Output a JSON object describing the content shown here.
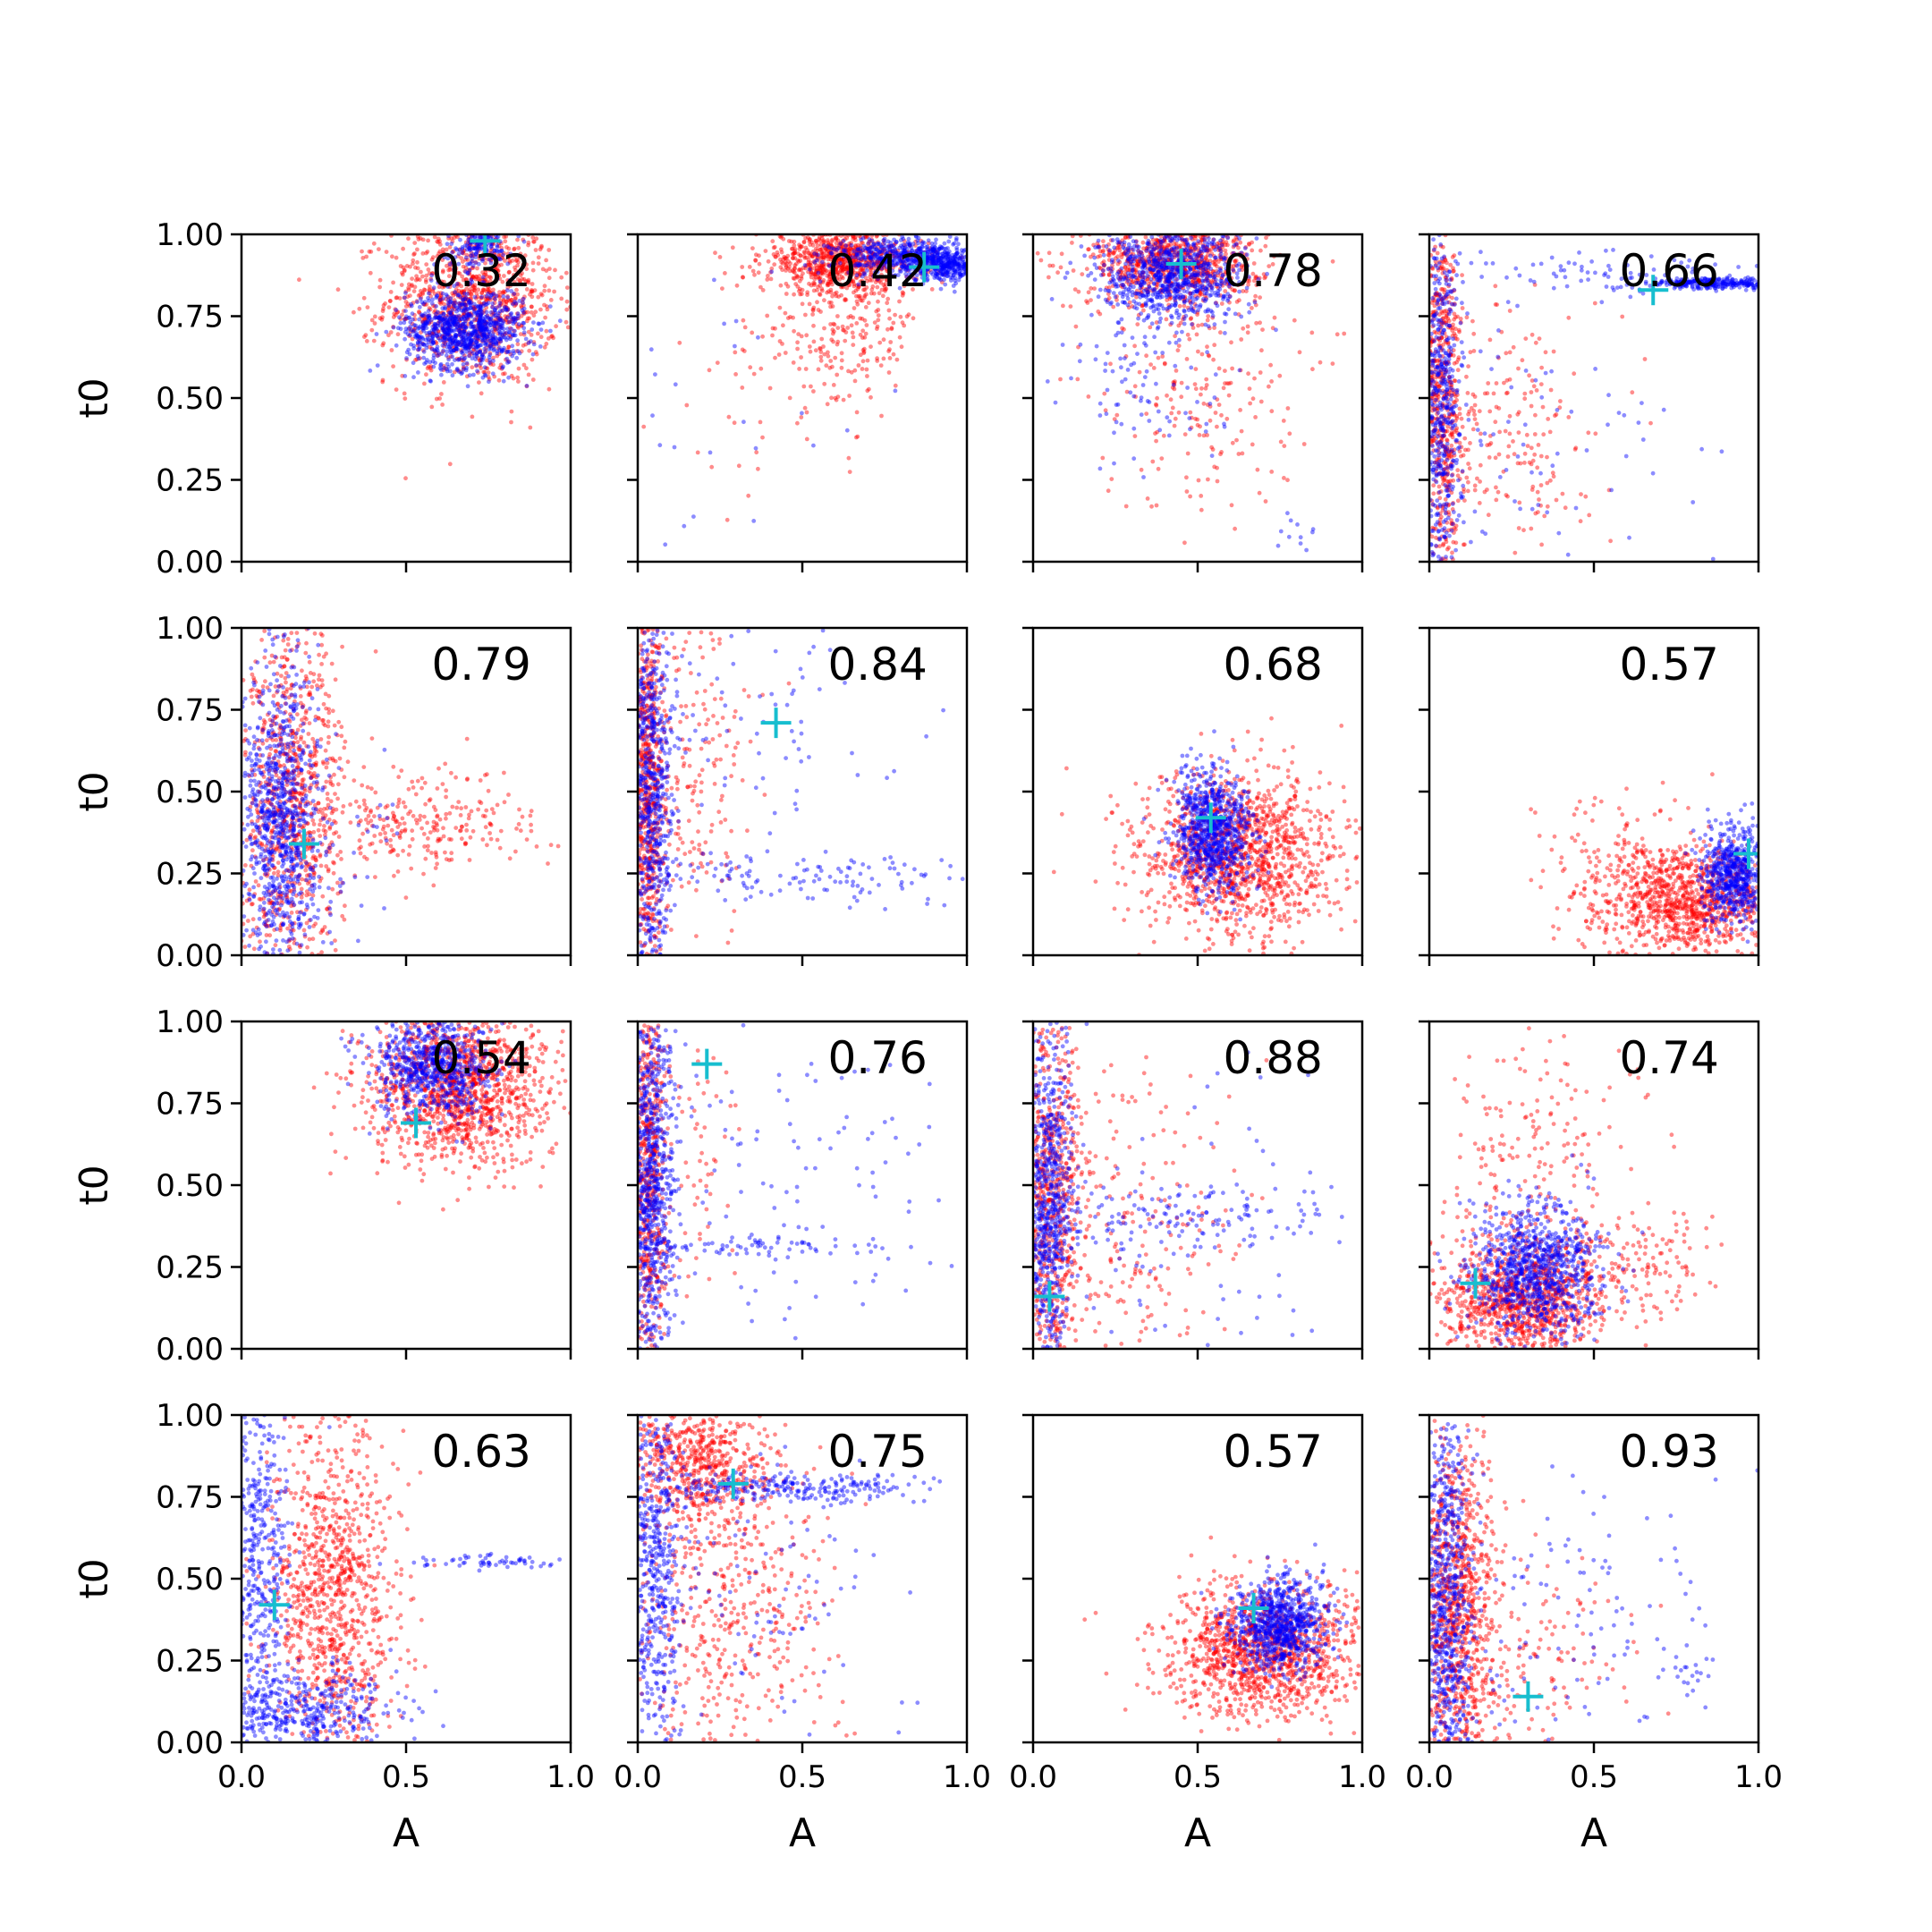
{
  "chart_data": {
    "type": "scatter",
    "layout": "4x4 grid",
    "xlabel": "A",
    "ylabel": "t0",
    "xlim": [
      0,
      1
    ],
    "ylim": [
      0,
      1
    ],
    "xticks": [
      "0.0",
      "0.5",
      "1.0"
    ],
    "yticks": [
      "0.00",
      "0.25",
      "0.50",
      "0.75",
      "1.00"
    ],
    "grid": false,
    "series_colors": {
      "red": "#ff0000",
      "blue": "#0000ff",
      "marker": "#17becf"
    },
    "panels": [
      {
        "label": "0.32",
        "marker": [
          0.74,
          0.98
        ],
        "red": [
          {
            "cx": 0.7,
            "cy": 0.8,
            "sx": 0.13,
            "sy": 0.13,
            "n": 1100
          }
        ],
        "blue": [
          {
            "cx": 0.68,
            "cy": 0.71,
            "sx": 0.09,
            "sy": 0.06,
            "n": 900
          },
          {
            "cx": 0.72,
            "cy": 0.96,
            "sx": 0.05,
            "sy": 0.03,
            "n": 150
          }
        ]
      },
      {
        "label": "0.42",
        "marker": [
          0.87,
          0.9
        ],
        "red": [
          {
            "cx": 0.62,
            "cy": 0.92,
            "sx": 0.12,
            "sy": 0.05,
            "n": 800
          },
          {
            "cx": 0.62,
            "cy": 0.72,
            "sx": 0.12,
            "sy": 0.13,
            "n": 260
          },
          {
            "cx": 0.35,
            "cy": 0.55,
            "sx": 0.15,
            "sy": 0.2,
            "n": 40
          }
        ],
        "blue": [
          {
            "cx": 0.84,
            "cy": 0.93,
            "sx": 0.12,
            "sy": 0.03,
            "n": 600
          },
          {
            "cx": 0.93,
            "cy": 0.9,
            "sx": 0.05,
            "sy": 0.02,
            "n": 250
          },
          {
            "cx": 0.3,
            "cy": 0.4,
            "sx": 0.2,
            "sy": 0.25,
            "n": 25
          }
        ]
      },
      {
        "label": "0.78",
        "marker": [
          0.45,
          0.91
        ],
        "red": [
          {
            "cx": 0.43,
            "cy": 0.92,
            "sx": 0.13,
            "sy": 0.07,
            "n": 900
          },
          {
            "cx": 0.5,
            "cy": 0.55,
            "sx": 0.15,
            "sy": 0.2,
            "n": 220
          }
        ],
        "blue": [
          {
            "cx": 0.42,
            "cy": 0.88,
            "sx": 0.11,
            "sy": 0.07,
            "n": 800
          },
          {
            "cx": 0.35,
            "cy": 0.55,
            "sx": 0.15,
            "sy": 0.15,
            "n": 100
          },
          {
            "cx": 0.8,
            "cy": 0.1,
            "sx": 0.04,
            "sy": 0.05,
            "n": 12
          }
        ]
      },
      {
        "label": "0.66",
        "marker": [
          0.68,
          0.83
        ],
        "red": [
          {
            "cx": 0.04,
            "cy": 0.5,
            "sx": 0.03,
            "sy": 0.28,
            "n": 600
          },
          {
            "cx": 0.22,
            "cy": 0.4,
            "sx": 0.14,
            "sy": 0.2,
            "n": 220
          }
        ],
        "blue": [
          {
            "cx": 0.04,
            "cy": 0.5,
            "sx": 0.03,
            "sy": 0.3,
            "n": 500
          },
          {
            "cx": 0.88,
            "cy": 0.85,
            "sx": 0.1,
            "sy": 0.008,
            "n": 280
          },
          {
            "cx": 0.5,
            "cy": 0.88,
            "sx": 0.25,
            "sy": 0.04,
            "n": 80
          },
          {
            "cx": 0.3,
            "cy": 0.35,
            "sx": 0.22,
            "sy": 0.2,
            "n": 80
          }
        ]
      },
      {
        "label": "0.79",
        "marker": [
          0.19,
          0.34
        ],
        "red": [
          {
            "cx": 0.15,
            "cy": 0.45,
            "sx": 0.08,
            "sy": 0.28,
            "n": 900
          },
          {
            "cx": 0.55,
            "cy": 0.4,
            "sx": 0.17,
            "sy": 0.08,
            "n": 260
          }
        ],
        "blue": [
          {
            "cx": 0.12,
            "cy": 0.4,
            "sx": 0.06,
            "sy": 0.25,
            "n": 900
          },
          {
            "cx": 0.35,
            "cy": 0.3,
            "sx": 0.1,
            "sy": 0.15,
            "n": 30
          }
        ]
      },
      {
        "label": "0.84",
        "marker": [
          0.42,
          0.71
        ],
        "red": [
          {
            "cx": 0.03,
            "cy": 0.5,
            "sx": 0.025,
            "sy": 0.3,
            "n": 700
          },
          {
            "cx": 0.18,
            "cy": 0.55,
            "sx": 0.1,
            "sy": 0.25,
            "n": 180
          }
        ],
        "blue": [
          {
            "cx": 0.04,
            "cy": 0.5,
            "sx": 0.035,
            "sy": 0.3,
            "n": 700
          },
          {
            "cx": 0.5,
            "cy": 0.24,
            "sx": 0.25,
            "sy": 0.04,
            "n": 120
          },
          {
            "cx": 0.4,
            "cy": 0.7,
            "sx": 0.25,
            "sy": 0.2,
            "n": 80
          }
        ]
      },
      {
        "label": "0.68",
        "marker": [
          0.54,
          0.42
        ],
        "red": [
          {
            "cx": 0.62,
            "cy": 0.3,
            "sx": 0.15,
            "sy": 0.13,
            "n": 1300
          }
        ],
        "blue": [
          {
            "cx": 0.55,
            "cy": 0.38,
            "sx": 0.06,
            "sy": 0.09,
            "n": 800
          }
        ]
      },
      {
        "label": "0.57",
        "marker": [
          0.97,
          0.31
        ],
        "red": [
          {
            "cx": 0.78,
            "cy": 0.17,
            "sx": 0.15,
            "sy": 0.08,
            "n": 1100
          },
          {
            "cx": 0.55,
            "cy": 0.35,
            "sx": 0.15,
            "sy": 0.1,
            "n": 60
          }
        ],
        "blue": [
          {
            "cx": 0.93,
            "cy": 0.25,
            "sx": 0.05,
            "sy": 0.07,
            "n": 600
          }
        ]
      },
      {
        "label": "0.54",
        "marker": [
          0.53,
          0.69
        ],
        "red": [
          {
            "cx": 0.65,
            "cy": 0.8,
            "sx": 0.14,
            "sy": 0.12,
            "n": 1300
          }
        ],
        "blue": [
          {
            "cx": 0.58,
            "cy": 0.86,
            "sx": 0.09,
            "sy": 0.08,
            "n": 700
          }
        ]
      },
      {
        "label": "0.76",
        "marker": [
          0.21,
          0.87
        ],
        "red": [
          {
            "cx": 0.03,
            "cy": 0.5,
            "sx": 0.025,
            "sy": 0.3,
            "n": 550
          },
          {
            "cx": 0.15,
            "cy": 0.5,
            "sx": 0.08,
            "sy": 0.28,
            "n": 80
          }
        ],
        "blue": [
          {
            "cx": 0.04,
            "cy": 0.5,
            "sx": 0.035,
            "sy": 0.3,
            "n": 800
          },
          {
            "cx": 0.4,
            "cy": 0.31,
            "sx": 0.2,
            "sy": 0.015,
            "n": 70
          },
          {
            "cx": 0.45,
            "cy": 0.55,
            "sx": 0.28,
            "sy": 0.28,
            "n": 120
          }
        ]
      },
      {
        "label": "0.88",
        "marker": [
          0.05,
          0.16
        ],
        "red": [
          {
            "cx": 0.05,
            "cy": 0.45,
            "sx": 0.05,
            "sy": 0.28,
            "n": 700
          },
          {
            "cx": 0.3,
            "cy": 0.35,
            "sx": 0.18,
            "sy": 0.25,
            "n": 220
          }
        ],
        "blue": [
          {
            "cx": 0.05,
            "cy": 0.45,
            "sx": 0.04,
            "sy": 0.28,
            "n": 700
          },
          {
            "cx": 0.35,
            "cy": 0.4,
            "sx": 0.25,
            "sy": 0.05,
            "n": 150
          },
          {
            "cx": 0.55,
            "cy": 0.4,
            "sx": 0.28,
            "sy": 0.28,
            "n": 70
          }
        ]
      },
      {
        "label": "0.74",
        "marker": [
          0.14,
          0.2
        ],
        "red": [
          {
            "cx": 0.28,
            "cy": 0.15,
            "sx": 0.12,
            "sy": 0.09,
            "n": 1000
          },
          {
            "cx": 0.3,
            "cy": 0.55,
            "sx": 0.15,
            "sy": 0.2,
            "n": 200
          },
          {
            "cx": 0.65,
            "cy": 0.25,
            "sx": 0.12,
            "sy": 0.08,
            "n": 150
          }
        ],
        "blue": [
          {
            "cx": 0.32,
            "cy": 0.24,
            "sx": 0.1,
            "sy": 0.1,
            "n": 900
          }
        ]
      },
      {
        "label": "0.63",
        "marker": [
          0.1,
          0.42
        ],
        "red": [
          {
            "cx": 0.28,
            "cy": 0.45,
            "sx": 0.09,
            "sy": 0.28,
            "n": 1000
          }
        ],
        "blue": [
          {
            "cx": 0.05,
            "cy": 0.5,
            "sx": 0.05,
            "sy": 0.3,
            "n": 500
          },
          {
            "cx": 0.2,
            "cy": 0.1,
            "sx": 0.15,
            "sy": 0.06,
            "n": 400
          },
          {
            "cx": 0.75,
            "cy": 0.55,
            "sx": 0.12,
            "sy": 0.01,
            "n": 60
          }
        ]
      },
      {
        "label": "0.75",
        "marker": [
          0.29,
          0.79
        ],
        "red": [
          {
            "cx": 0.18,
            "cy": 0.85,
            "sx": 0.12,
            "sy": 0.1,
            "n": 600
          },
          {
            "cx": 0.25,
            "cy": 0.4,
            "sx": 0.18,
            "sy": 0.25,
            "n": 500
          }
        ],
        "blue": [
          {
            "cx": 0.05,
            "cy": 0.5,
            "sx": 0.04,
            "sy": 0.3,
            "n": 500
          },
          {
            "cx": 0.45,
            "cy": 0.78,
            "sx": 0.2,
            "sy": 0.025,
            "n": 250
          },
          {
            "cx": 0.4,
            "cy": 0.45,
            "sx": 0.25,
            "sy": 0.2,
            "n": 100
          }
        ]
      },
      {
        "label": "0.57",
        "marker": [
          0.67,
          0.41
        ],
        "red": [
          {
            "cx": 0.7,
            "cy": 0.28,
            "sx": 0.15,
            "sy": 0.1,
            "n": 1200
          }
        ],
        "blue": [
          {
            "cx": 0.75,
            "cy": 0.36,
            "sx": 0.07,
            "sy": 0.07,
            "n": 800
          }
        ]
      },
      {
        "label": "0.93",
        "marker": [
          0.3,
          0.14
        ],
        "red": [
          {
            "cx": 0.08,
            "cy": 0.4,
            "sx": 0.06,
            "sy": 0.28,
            "n": 1000
          },
          {
            "cx": 0.3,
            "cy": 0.25,
            "sx": 0.15,
            "sy": 0.15,
            "n": 150
          }
        ],
        "blue": [
          {
            "cx": 0.05,
            "cy": 0.45,
            "sx": 0.04,
            "sy": 0.3,
            "n": 700
          },
          {
            "cx": 0.4,
            "cy": 0.35,
            "sx": 0.25,
            "sy": 0.25,
            "n": 150
          },
          {
            "cx": 0.8,
            "cy": 0.22,
            "sx": 0.04,
            "sy": 0.02,
            "n": 15
          }
        ]
      }
    ]
  }
}
